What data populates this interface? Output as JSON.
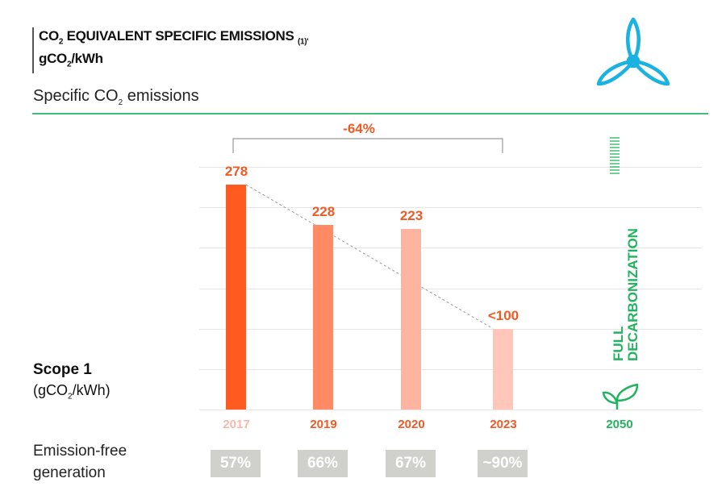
{
  "header": {
    "title_line1_pre": "CO",
    "title_line1_sub": "2",
    "title_line1_post": " EQUIVALENT SPECIFIC EMISSIONS ",
    "title_note": "(1)'",
    "title_line2_pre": "gCO",
    "title_line2_sub": "2",
    "title_line2_post": "/kWh",
    "subtitle_pre": "Specific CO",
    "subtitle_sub": "2",
    "subtitle_post": " emissions"
  },
  "left_labels": {
    "scope": "Scope 1",
    "unit_pre": "(gCO",
    "unit_sub": "2",
    "unit_post": "/kWh)",
    "emission_free": "Emission-free generation"
  },
  "icons": [
    "wind-turbine-icon",
    "leaf-sprout-icon"
  ],
  "colors": {
    "accent_orange": "#f05a24",
    "green": "#22b35e",
    "turbine": "#1ab2e0"
  },
  "chart_data": {
    "type": "bar",
    "categories": [
      "2017",
      "2019",
      "2020",
      "2023"
    ],
    "values": [
      278,
      228,
      223,
      100
    ],
    "value_labels": [
      "278",
      "228",
      "223",
      "<100"
    ],
    "bar_colors": [
      "#ff5a1f",
      "#ff8a63",
      "#ffb4a2",
      "#ffc6b9"
    ],
    "year_colors": [
      "#f7b8a8",
      "#f05a24",
      "#f05a24",
      "#f05a24"
    ],
    "ylim": [
      0,
      300
    ],
    "grid": true,
    "reduction_label": "-64%",
    "trend_line": {
      "from": "2017",
      "to": "2023"
    },
    "target": {
      "year": "2050",
      "label_line1": "FULL",
      "label_line2": "DECARBONIZATION"
    },
    "emission_free_generation": [
      "57%",
      "66%",
      "67%",
      "~90%"
    ]
  }
}
